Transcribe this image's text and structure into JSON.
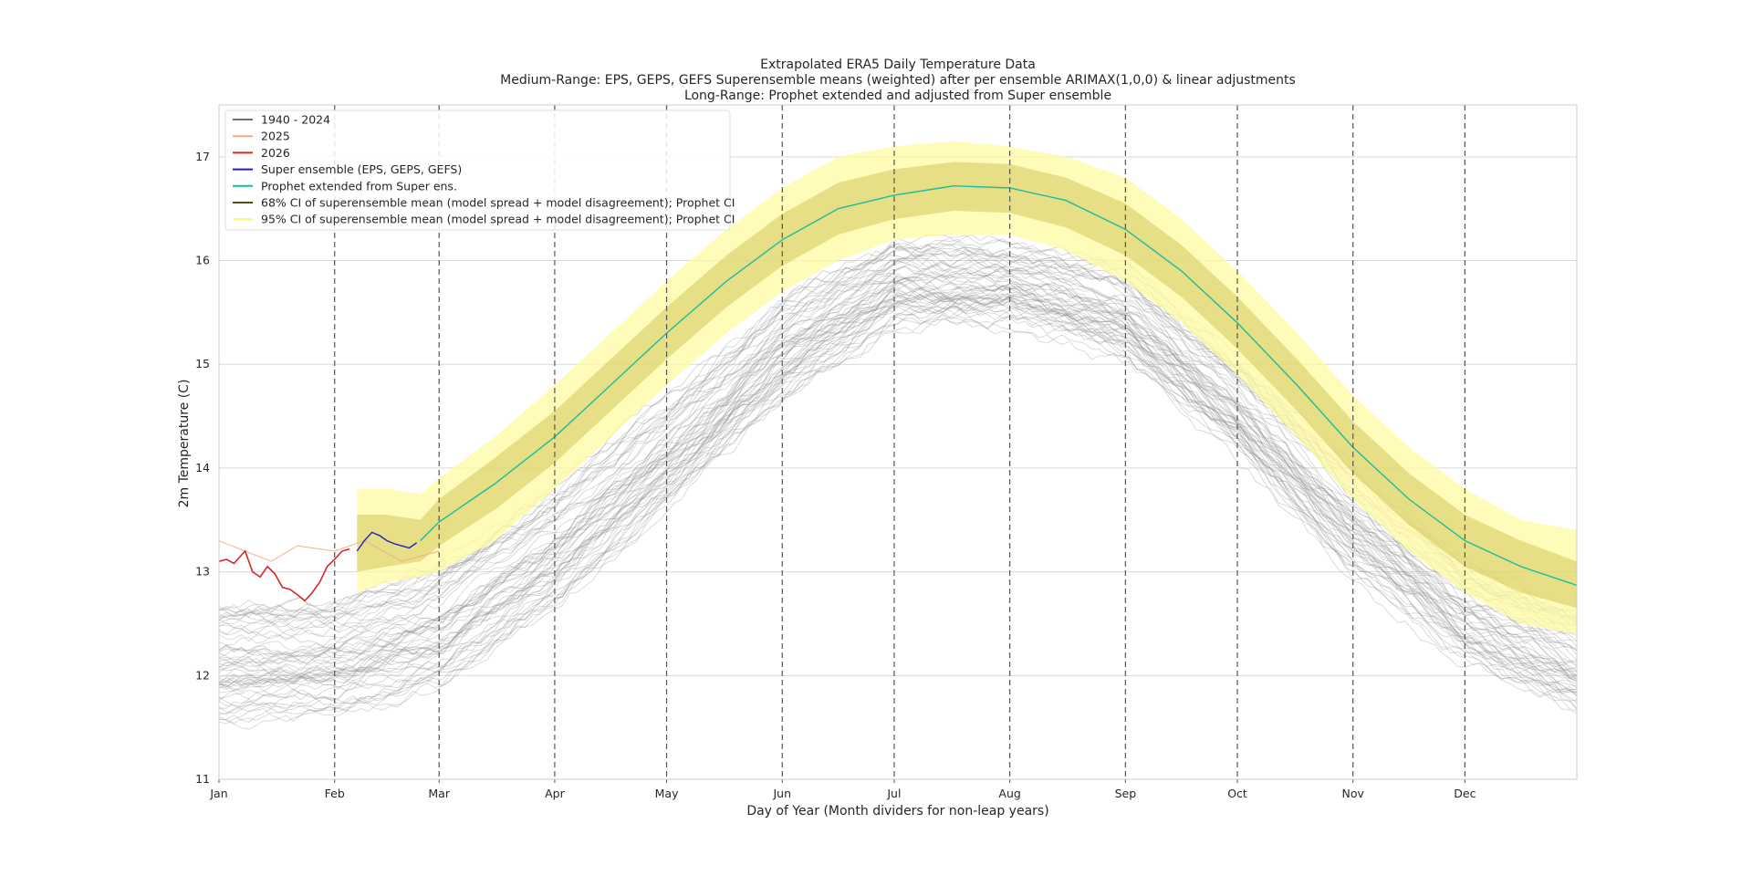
{
  "chart_data": {
    "type": "line",
    "title_lines": [
      "Extrapolated ERA5 Daily Temperature Data",
      "Medium-Range: EPS, GEPS, GEFS Superensemble means (weighted) after per ensemble ARIMAX(1,0,0) & linear adjustments",
      "Long-Range: Prophet extended and adjusted from Super ensemble"
    ],
    "xlabel": "Day of Year (Month dividers for non-leap years)",
    "ylabel": "2m Temperature (C)",
    "xlim": [
      1,
      365
    ],
    "ylim": [
      11,
      17.5
    ],
    "yticks": [
      11,
      12,
      13,
      14,
      15,
      16,
      17
    ],
    "month_ticks": [
      {
        "label": "Jan",
        "day": 1
      },
      {
        "label": "Feb",
        "day": 32
      },
      {
        "label": "Mar",
        "day": 60
      },
      {
        "label": "Apr",
        "day": 91
      },
      {
        "label": "May",
        "day": 121
      },
      {
        "label": "Jun",
        "day": 152
      },
      {
        "label": "Jul",
        "day": 182
      },
      {
        "label": "Aug",
        "day": 213
      },
      {
        "label": "Sep",
        "day": 244
      },
      {
        "label": "Oct",
        "day": 274
      },
      {
        "label": "Nov",
        "day": 305
      },
      {
        "label": "Dec",
        "day": 335
      }
    ],
    "grid": true,
    "legend_position": "top-left",
    "legend": [
      {
        "label": "1940 - 2024",
        "color": "#707070"
      },
      {
        "label": "2025",
        "color": "#f4a582"
      },
      {
        "label": "2026",
        "color": "#d62728"
      },
      {
        "label": "Super ensemble (EPS, GEPS, GEFS)",
        "color": "#1f1fbf"
      },
      {
        "label": "Prophet extended from Super ens.",
        "color": "#1abc9c"
      },
      {
        "label": "68% CI of superensemble mean (model spread + model disagreement); Prophet CI",
        "color": "#5a4a1a"
      },
      {
        "label": "95% CI of superensemble mean (model spread + model disagreement); Prophet CI",
        "color": "#fff07a"
      }
    ],
    "historical_band": {
      "name": "1940 - 2024",
      "x": [
        1,
        32,
        60,
        91,
        121,
        152,
        182,
        213,
        244,
        274,
        305,
        335,
        365
      ],
      "low": [
        11.4,
        11.5,
        11.7,
        12.5,
        13.5,
        14.5,
        15.3,
        15.3,
        14.9,
        14.0,
        12.8,
        12.0,
        11.5
      ],
      "high": [
        12.9,
        12.9,
        13.3,
        14.0,
        14.8,
        15.8,
        16.3,
        16.3,
        16.1,
        15.2,
        14.2,
        13.3,
        12.8
      ]
    },
    "series": [
      {
        "name": "2025",
        "x": [
          1,
          8,
          15,
          22,
          32,
          40,
          50,
          60
        ],
        "values": [
          13.3,
          13.2,
          13.1,
          13.25,
          13.2,
          13.3,
          13.1,
          13.2
        ]
      },
      {
        "name": "2026",
        "x": [
          1,
          3,
          5,
          8,
          10,
          12,
          14,
          16,
          18,
          20,
          22,
          24,
          26,
          28,
          30,
          32,
          34,
          36
        ],
        "values": [
          13.1,
          13.12,
          13.08,
          13.2,
          13.0,
          12.95,
          13.05,
          12.98,
          12.85,
          12.83,
          12.78,
          12.72,
          12.8,
          12.9,
          13.05,
          13.12,
          13.2,
          13.22
        ]
      },
      {
        "name": "Super ensemble (EPS, GEPS, GEFS)",
        "x": [
          38,
          40,
          42,
          44,
          46,
          48,
          50,
          52,
          54
        ],
        "values": [
          13.2,
          13.3,
          13.38,
          13.35,
          13.3,
          13.27,
          13.25,
          13.23,
          13.28
        ]
      },
      {
        "name": "Prophet extended from Super ens.",
        "x": [
          55,
          60,
          75,
          91,
          106,
          121,
          137,
          152,
          167,
          182,
          198,
          213,
          228,
          244,
          259,
          274,
          290,
          305,
          320,
          335,
          350,
          365
        ],
        "values": [
          13.3,
          13.48,
          13.85,
          14.3,
          14.8,
          15.3,
          15.8,
          16.2,
          16.5,
          16.63,
          16.72,
          16.7,
          16.58,
          16.3,
          15.9,
          15.4,
          14.8,
          14.2,
          13.7,
          13.3,
          13.05,
          12.87
        ]
      }
    ],
    "ci_95": {
      "name": "95% CI of superensemble mean (model spread + model disagreement); Prophet CI",
      "x": [
        38,
        46,
        55,
        60,
        75,
        91,
        106,
        121,
        137,
        152,
        167,
        182,
        198,
        213,
        228,
        244,
        259,
        274,
        290,
        305,
        320,
        335,
        350,
        365
      ],
      "low": [
        12.8,
        12.9,
        12.95,
        13.0,
        13.3,
        13.8,
        14.3,
        14.8,
        15.3,
        15.7,
        16.0,
        16.2,
        16.25,
        16.25,
        16.1,
        15.8,
        15.4,
        14.9,
        14.3,
        13.7,
        13.2,
        12.8,
        12.5,
        12.4
      ],
      "high": [
        13.8,
        13.8,
        13.75,
        13.9,
        14.3,
        14.8,
        15.3,
        15.8,
        16.3,
        16.7,
        17.0,
        17.1,
        17.15,
        17.1,
        17.0,
        16.8,
        16.4,
        15.9,
        15.3,
        14.7,
        14.2,
        13.8,
        13.5,
        13.4
      ]
    },
    "ci_68": {
      "name": "68% CI of superensemble mean (model spread + model disagreement); Prophet CI",
      "x": [
        38,
        46,
        55,
        60,
        75,
        91,
        106,
        121,
        137,
        152,
        167,
        182,
        198,
        213,
        228,
        244,
        259,
        274,
        290,
        305,
        320,
        335,
        350,
        365
      ],
      "low": [
        13.0,
        13.05,
        13.1,
        13.25,
        13.6,
        14.05,
        14.55,
        15.05,
        15.55,
        15.95,
        16.25,
        16.4,
        16.48,
        16.46,
        16.32,
        16.05,
        15.65,
        15.15,
        14.55,
        13.95,
        13.45,
        13.05,
        12.8,
        12.65
      ],
      "high": [
        13.55,
        13.55,
        13.5,
        13.7,
        14.1,
        14.55,
        15.05,
        15.55,
        16.05,
        16.45,
        16.75,
        16.88,
        16.95,
        16.93,
        16.8,
        16.55,
        16.15,
        15.65,
        15.05,
        14.45,
        13.95,
        13.55,
        13.3,
        13.1
      ]
    }
  }
}
